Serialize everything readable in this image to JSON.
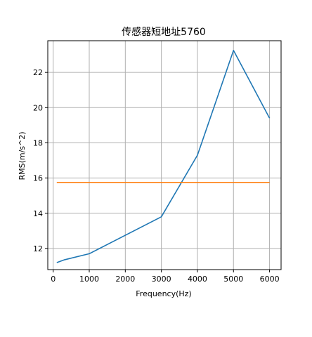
{
  "chart_data": {
    "type": "line",
    "title": "传感器短地址5760",
    "xlabel": "Frequency(Hz)",
    "ylabel": "RMS(m/s^2)",
    "xlim": [
      -150,
      6320
    ],
    "ylim": [
      10.8,
      23.8
    ],
    "xticks": [
      "0",
      "1000",
      "2000",
      "3000",
      "4000",
      "5000",
      "6000"
    ],
    "yticks": [
      "12",
      "14",
      "16",
      "18",
      "20",
      "22"
    ],
    "grid": true,
    "series": [
      {
        "color": "#1f77b4",
        "x": [
          100,
          300,
          1000,
          3000,
          4000,
          5000,
          6000
        ],
        "y": [
          11.2,
          11.35,
          11.7,
          13.8,
          17.3,
          23.25,
          19.4
        ]
      },
      {
        "color": "#ff7f0e",
        "x": [
          100,
          6000
        ],
        "y": [
          15.75,
          15.75
        ]
      }
    ]
  }
}
